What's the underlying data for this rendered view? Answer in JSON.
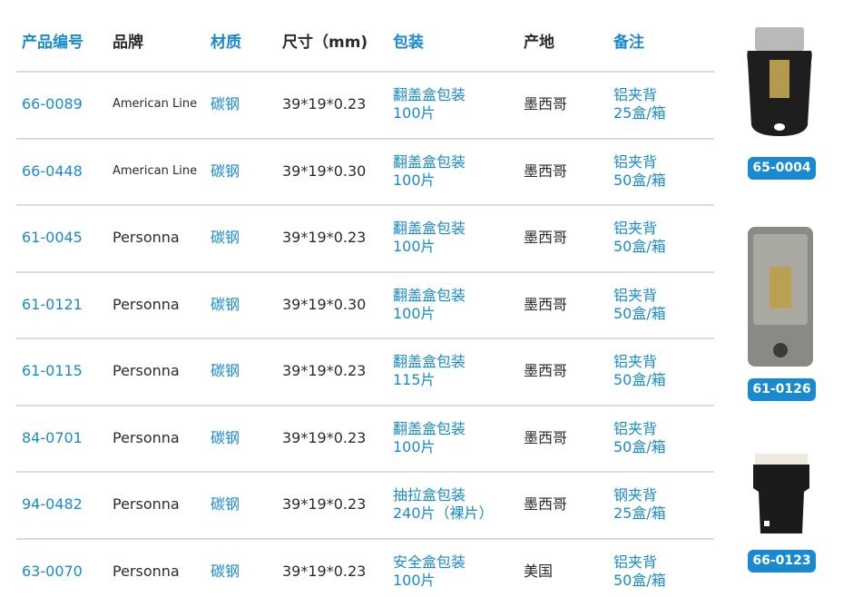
{
  "headers": [
    "产品编号",
    "品牌",
    "材质",
    "尺寸（mm)",
    "包装",
    "产地",
    "备注"
  ],
  "rows": [
    {
      "code": "66-0089",
      "brand": "American Line",
      "material": "碳钢",
      "size": "39*19*0.23",
      "pack1": "翻盖盒包装",
      "pack2": "100片",
      "origin": "墨西哥",
      "note1": "铝夹背",
      "note2": "25盒/箱"
    },
    {
      "code": "66-0448",
      "brand": "American Line",
      "material": "碳钢",
      "size": "39*19*0.30",
      "pack1": "翻盖盒包装",
      "pack2": "100片",
      "origin": "墨西哥",
      "note1": "铝夹背",
      "note2": "50盒/箱"
    },
    {
      "code": "61-0045",
      "brand": "Personna",
      "material": "碳钢",
      "size": "39*19*0.23",
      "pack1": "翻盖盒包装",
      "pack2": "100片",
      "origin": "墨西哥",
      "note1": "铝夹背",
      "note2": "50盒/箱"
    },
    {
      "code": "61-0121",
      "brand": "Personna",
      "material": "碳钢",
      "size": "39*19*0.30",
      "pack1": "翻盖盒包装",
      "pack2": "100片",
      "origin": "墨西哥",
      "note1": "铝夹背",
      "note2": "50盒/箱"
    },
    {
      "code": "61-0115",
      "brand": "Personna",
      "material": "碳钢",
      "size": "39*19*0.23",
      "pack1": "翻盖盒包装",
      "pack2": "115片",
      "origin": "墨西哥",
      "note1": "铝夹背",
      "note2": "50盒/箱"
    },
    {
      "code": "84-0701",
      "brand": "Personna",
      "material": "碳钢",
      "size": "39*19*0.23",
      "pack1": "翻盖盒包装",
      "pack2": "100片",
      "origin": "墨西哥",
      "note1": "铝夹背",
      "note2": "50盒/箱"
    },
    {
      "code": "94-0482",
      "brand": "Personna",
      "material": "碳钢",
      "size": "39*19*0.23",
      "pack1": "抽拉盒包装",
      "pack2": "240片（裸片）",
      "origin": "墨西哥",
      "note1": "钢夹背",
      "note2": "25盒/箱"
    },
    {
      "code": "63-0070",
      "brand": "Personna",
      "material": "碳钢",
      "size": "39*19*0.23",
      "pack1": "安全盒包装",
      "pack2": "100片",
      "origin": "美国",
      "note1": "铝夹背",
      "note2": "50盒/箱"
    }
  ],
  "products": [
    {
      "code": "65-0004",
      "icon": "black-scraper-icon"
    },
    {
      "code": "61-0126",
      "icon": "gray-scraper-icon"
    },
    {
      "code": "66-0123",
      "icon": "black-mini-scraper-icon"
    }
  ],
  "colors": {
    "accent": "#1a8ad0",
    "text": "#2b2b2b",
    "divider": "#dcdcdc"
  }
}
